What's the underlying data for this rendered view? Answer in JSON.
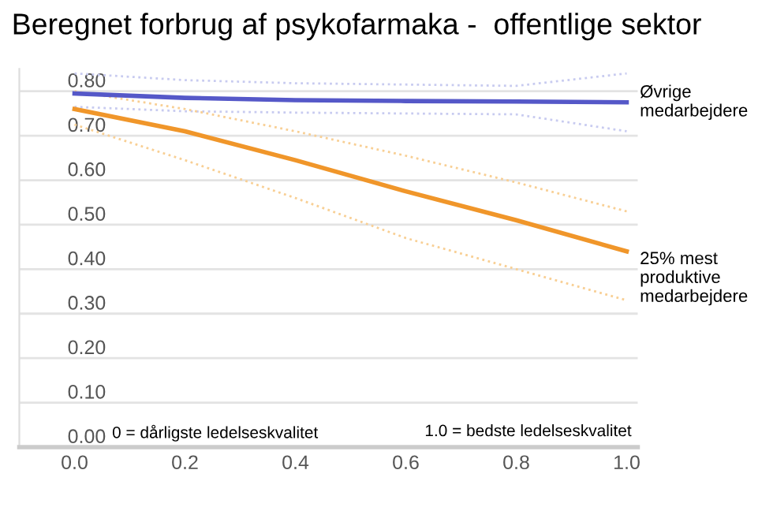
{
  "chart_data": {
    "type": "line",
    "title": "Beregnet forbrug af psykofarmaka -  offentlige sektor",
    "x": [
      0,
      0.2,
      0.4,
      0.6,
      0.8,
      1.0
    ],
    "series": [
      {
        "name": "Øvrige\nmedarbejdere",
        "color": "#5558c8",
        "values": [
          0.795,
          0.785,
          0.78,
          0.778,
          0.777,
          0.775
        ]
      },
      {
        "color": "#c8cbf0",
        "line_style": "dotted",
        "values": [
          0.84,
          0.825,
          0.818,
          0.815,
          0.812,
          0.84
        ]
      },
      {
        "color": "#c8cbf0",
        "line_style": "dotted",
        "values": [
          0.765,
          0.755,
          0.752,
          0.75,
          0.748,
          0.71
        ]
      },
      {
        "name": "25% mest\nproduktive\nmedarbejdere",
        "color": "#f0962a",
        "values": [
          0.76,
          0.71,
          0.645,
          0.575,
          0.51,
          0.44
        ]
      },
      {
        "color": "#f8cf94",
        "line_style": "dotted",
        "values": [
          0.8,
          0.76,
          0.71,
          0.655,
          0.595,
          0.53
        ]
      },
      {
        "color": "#f8cf94",
        "line_style": "dotted",
        "values": [
          0.725,
          0.645,
          0.56,
          0.47,
          0.4,
          0.33
        ]
      }
    ],
    "xlim": [
      -0.1,
      1.02
    ],
    "ylim": [
      0,
      0.85
    ],
    "xticks": [
      {
        "value": 0,
        "label": "0.0"
      },
      {
        "value": 0.2,
        "label": "0.2"
      },
      {
        "value": 0.4,
        "label": "0.4"
      },
      {
        "value": 0.6,
        "label": "0.6"
      },
      {
        "value": 0.8,
        "label": "0.8"
      },
      {
        "value": 1.0,
        "label": "1.0"
      }
    ],
    "yticks": [
      {
        "value": 0,
        "label": "0.00"
      },
      {
        "value": 0.1,
        "label": "0.10"
      },
      {
        "value": 0.2,
        "label": "0.20"
      },
      {
        "value": 0.3,
        "label": "0.30"
      },
      {
        "value": 0.4,
        "label": "0.40"
      },
      {
        "value": 0.5,
        "label": "0.50"
      },
      {
        "value": 0.6,
        "label": "0.60"
      },
      {
        "value": 0.7,
        "label": "0.70"
      },
      {
        "value": 0.8,
        "label": "0.80"
      }
    ],
    "grid": "y",
    "legend": false,
    "marker": "none",
    "annotations": [
      "0 = dårligste ledelseskvalitet",
      "1.0 = bedste ledelseskvalitet"
    ]
  }
}
